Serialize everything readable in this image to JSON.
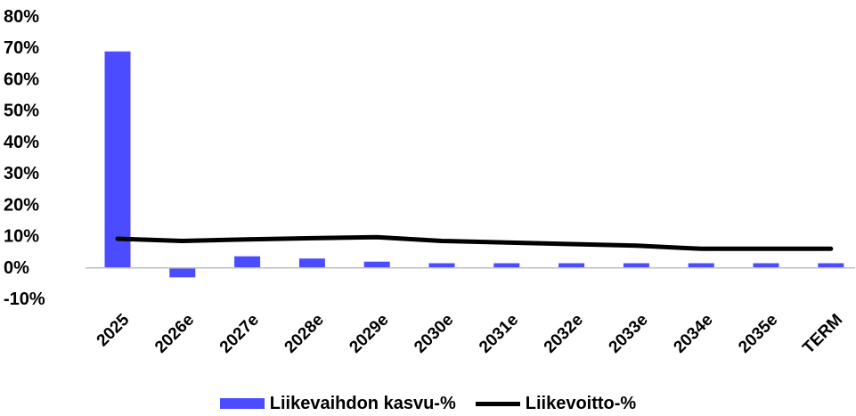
{
  "chart_data": {
    "type": "bar",
    "categories": [
      "2025",
      "2026e",
      "2027e",
      "2028e",
      "2029e",
      "2030e",
      "2031e",
      "2032e",
      "2033e",
      "2034e",
      "2035e",
      "TERM"
    ],
    "series": [
      {
        "name": "Liikevaihdon kasvu-%",
        "type": "bar",
        "color": "#4b4bff",
        "values": [
          69,
          -3,
          3.7,
          3,
          2,
          1.5,
          1.5,
          1.5,
          1.5,
          1.5,
          1.5,
          1.5
        ]
      },
      {
        "name": "Liikevoitto-%",
        "type": "line",
        "color": "#000000",
        "values": [
          9.3,
          8.6,
          9.1,
          9.5,
          9.8,
          8.6,
          8.1,
          7.6,
          7.1,
          6.1,
          6.1,
          6.1
        ]
      }
    ],
    "ylim": [
      -10,
      80
    ],
    "yticks": [
      80,
      70,
      60,
      50,
      40,
      30,
      20,
      10,
      0,
      -10
    ],
    "ytick_labels": [
      "80%",
      "70%",
      "60%",
      "50%",
      "40%",
      "30%",
      "20%",
      "10%",
      "0%",
      "-10%"
    ],
    "grid": false,
    "legend_position": "bottom-center",
    "title": "",
    "xlabel": "",
    "ylabel": ""
  }
}
